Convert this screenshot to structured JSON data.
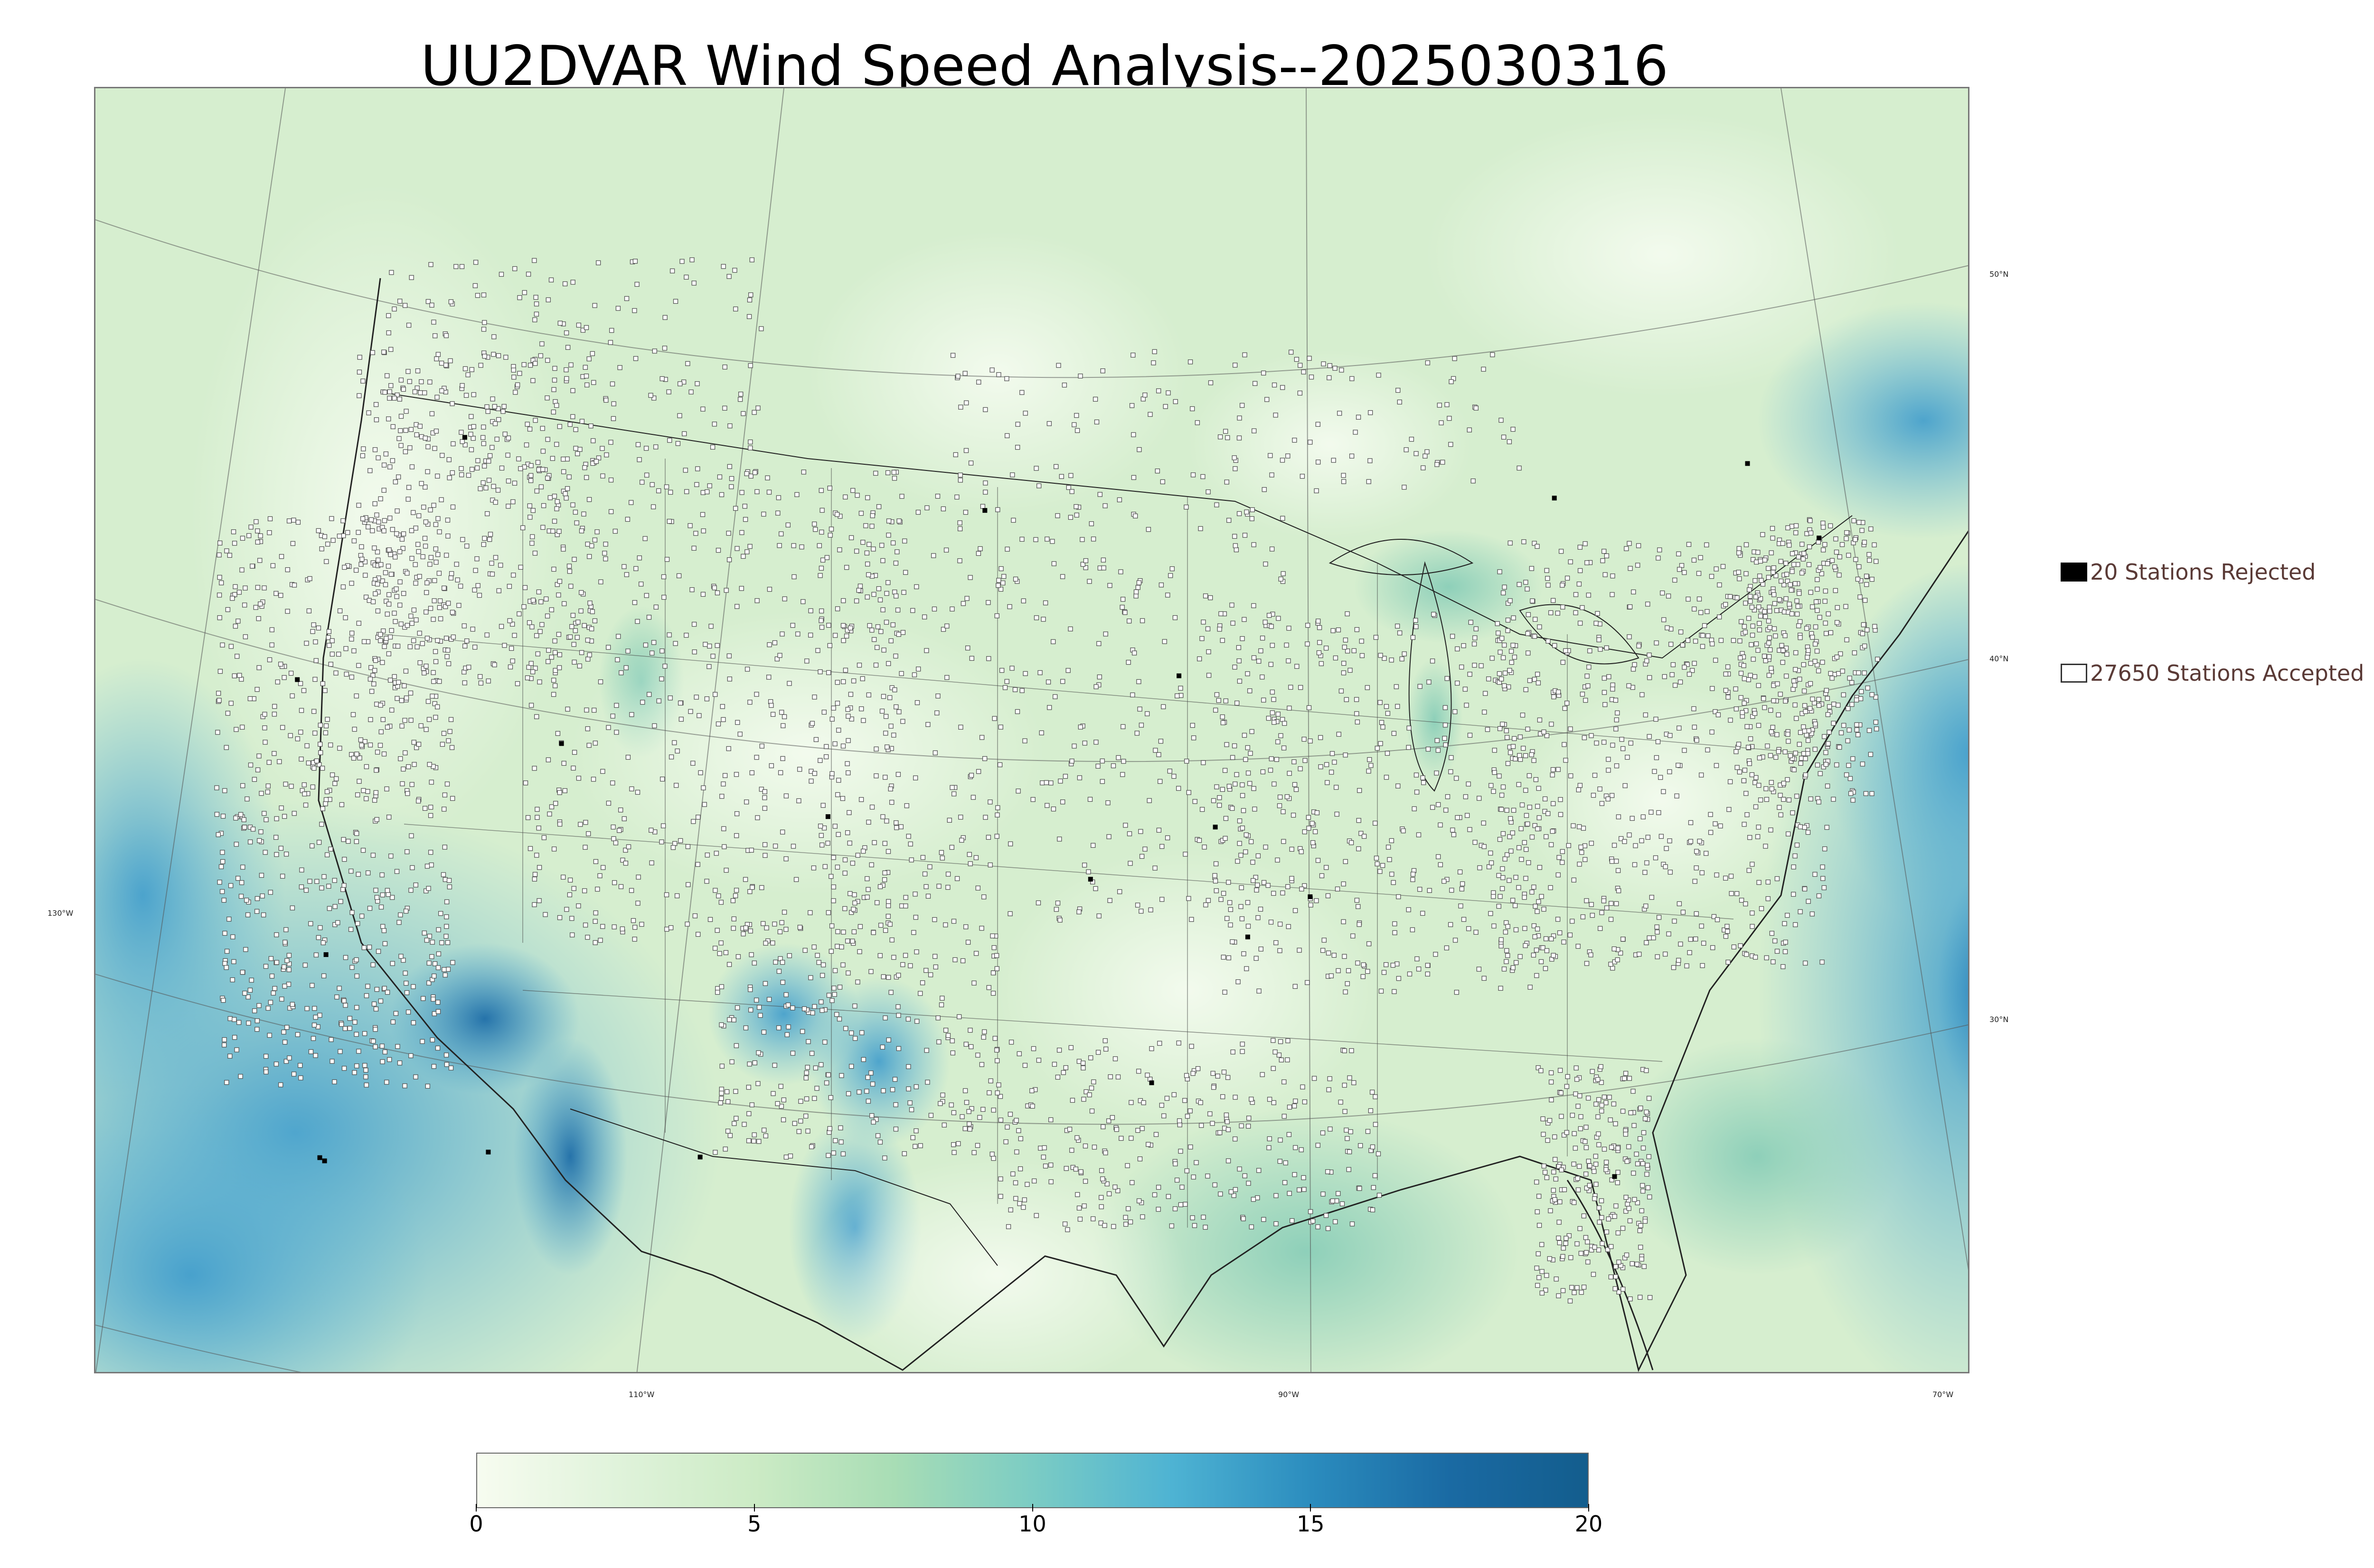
{
  "title": "UU2DVAR Wind Speed Analysis--2025030316",
  "map": {
    "colors": {
      "land_base": "#d6eecf",
      "land_light": "#eef8e6",
      "water_base": "#a9dcc0",
      "strong_wind": "#4ea8d2",
      "very_strong_wind": "#2a7fb8",
      "station_edge": "#555555",
      "coast_line": "#222222",
      "grid_line": "#555555"
    },
    "lon_labels": [
      "110°W",
      "90°W",
      "70°W",
      "130°W"
    ],
    "lat_labels": [
      "50°N",
      "40°N",
      "30°N"
    ]
  },
  "legend": {
    "rejected_label": "20 Stations Rejected",
    "accepted_label": "27650 Stations Accepted"
  },
  "colorbar": {
    "min": 0,
    "max": 20,
    "tick_labels": [
      "0",
      "5",
      "10",
      "15",
      "20"
    ],
    "colors": [
      "#f7fcf0",
      "#e0f3db",
      "#ccebc5",
      "#a8ddb5",
      "#7bccc4",
      "#4eb3d3",
      "#2b8cbe",
      "#1a6aa3",
      "#135d8d"
    ]
  }
}
